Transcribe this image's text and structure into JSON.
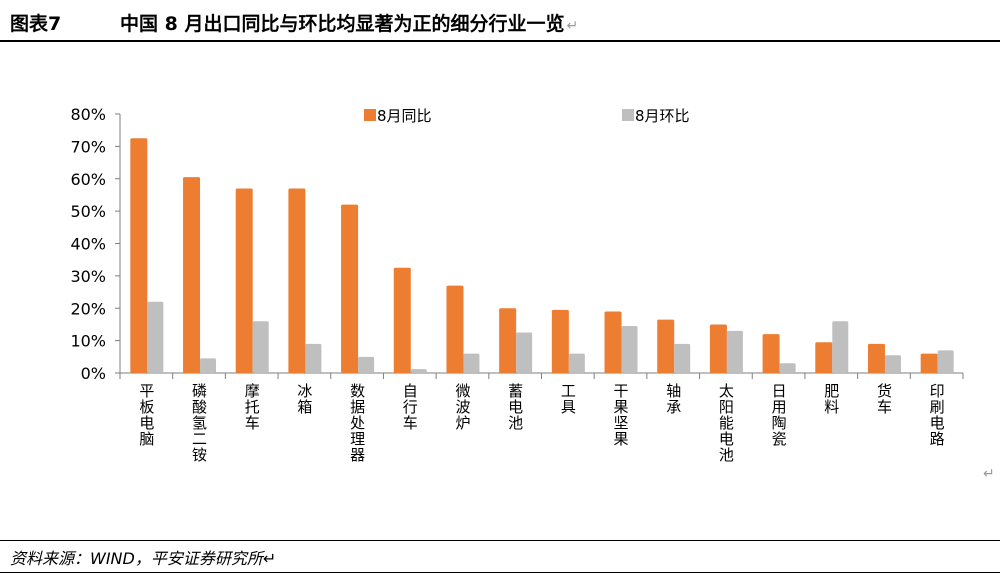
{
  "header": {
    "figure_label": "图表7",
    "title": "中国 8 月出口同比与环比均显著为正的细分行业一览",
    "return_mark": "↵"
  },
  "source": "资料来源：WIND，平安证券研究所↵",
  "colors": {
    "yoy": "#ED7D31",
    "mom": "#BFBFBF",
    "axis": "#7F7F7F"
  },
  "chart_data": {
    "type": "bar",
    "title": "",
    "xlabel": "",
    "ylabel": "",
    "ylim": [
      0,
      80
    ],
    "yticks": [
      0,
      10,
      20,
      30,
      40,
      50,
      60,
      70,
      80
    ],
    "ytick_labels": [
      "0%",
      "10%",
      "20%",
      "30%",
      "40%",
      "50%",
      "60%",
      "70%",
      "80%"
    ],
    "grid": false,
    "legend_position": "top",
    "categories": [
      "平板电脑",
      "磷酸氢二铵",
      "摩托车",
      "冰箱",
      "数据处理器",
      "自行车",
      "微波炉",
      "蓄电池",
      "工具",
      "干果坚果",
      "轴承",
      "太阳能电池",
      "日用陶瓷",
      "肥料",
      "货车",
      "印刷电路"
    ],
    "series": [
      {
        "name": "8月同比",
        "color": "#ED7D31",
        "values": [
          72.5,
          60.5,
          57,
          57,
          52,
          32.5,
          27,
          20,
          19.5,
          19,
          16.5,
          15,
          12,
          9.5,
          9,
          6
        ]
      },
      {
        "name": "8月环比",
        "color": "#BFBFBF",
        "values": [
          22,
          4.5,
          16,
          9,
          5,
          1.2,
          6,
          12.5,
          6,
          14.5,
          9,
          13,
          3,
          16,
          5.5,
          7
        ]
      }
    ]
  }
}
